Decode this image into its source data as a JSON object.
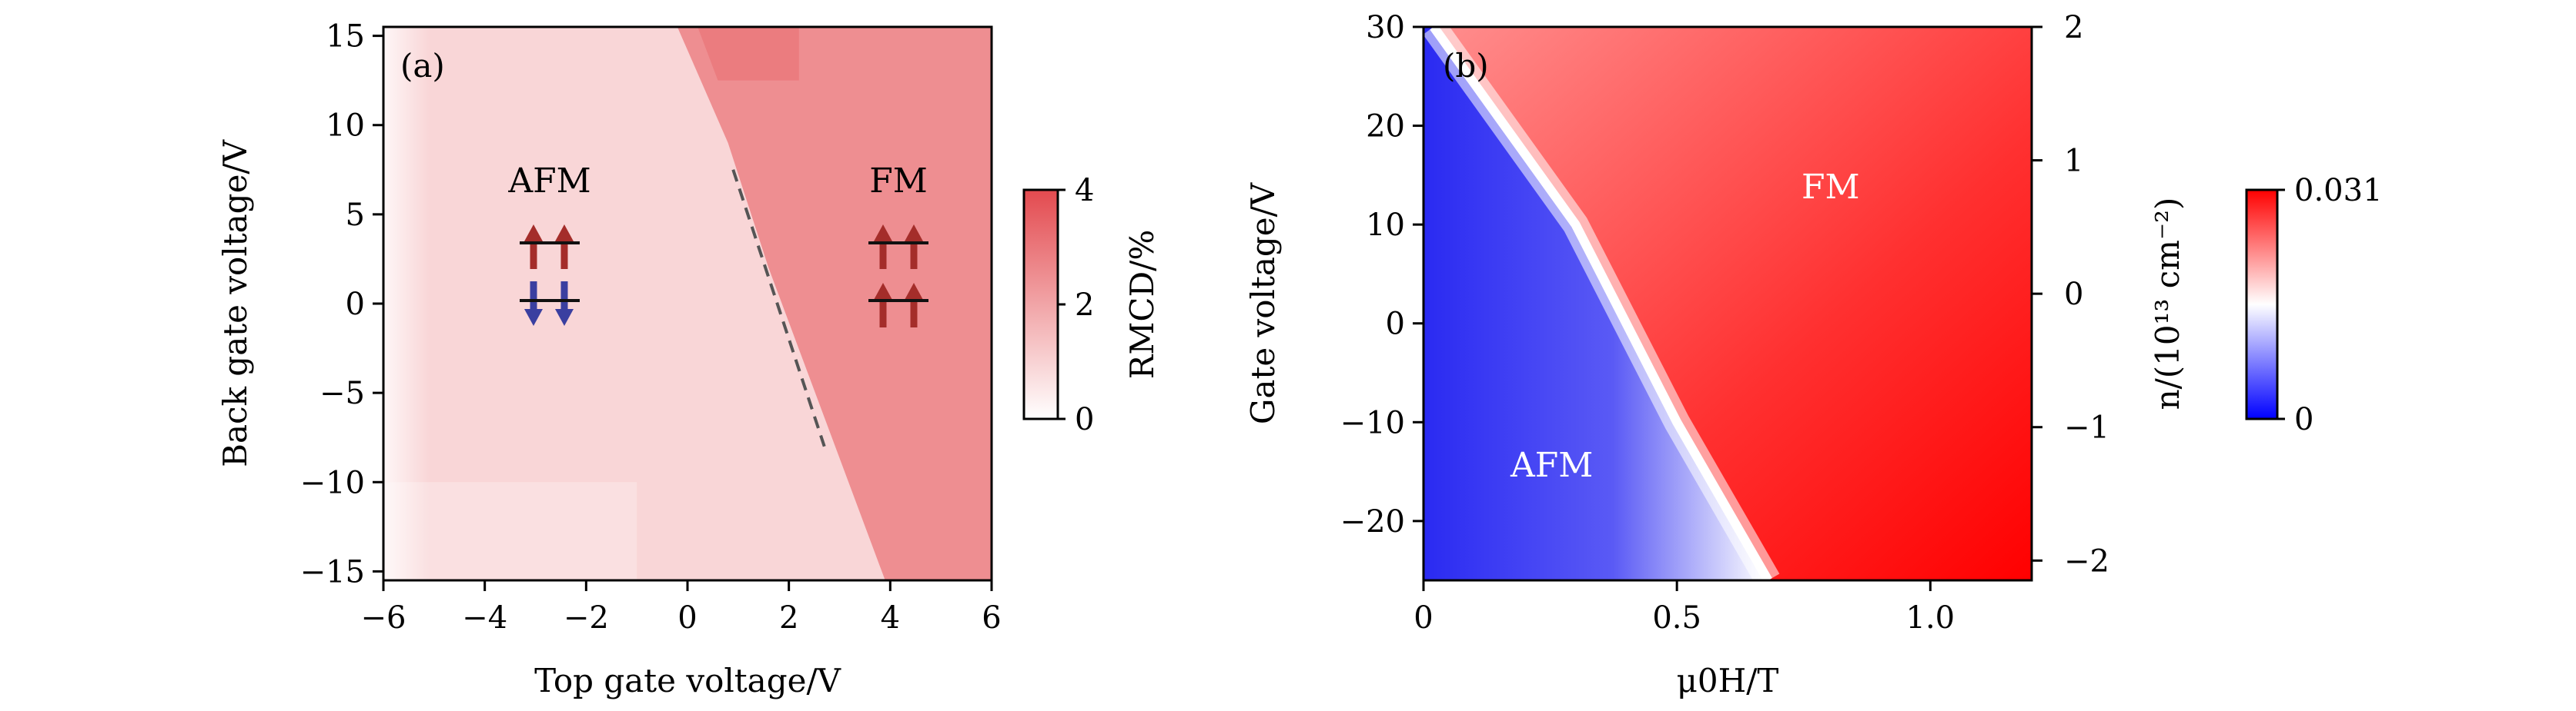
{
  "chart_data": [
    {
      "type": "heatmap",
      "panel": "(a)",
      "xlabel": "Top gate voltage/V",
      "ylabel": "Back gate voltage/V",
      "xlim": [
        -6,
        6
      ],
      "ylim": [
        -15.5,
        15.5
      ],
      "xticks": [
        "−6",
        "−4",
        "−2",
        "0",
        "2",
        "4",
        "6"
      ],
      "xtick_values": [
        -6,
        -4,
        -2,
        0,
        2,
        4,
        6
      ],
      "yticks": [
        "15",
        "10",
        "5",
        "0",
        "−5",
        "−10",
        "−15"
      ],
      "ytick_values": [
        15,
        10,
        5,
        0,
        -5,
        -10,
        -15
      ],
      "colorbar": {
        "label": "RMCD/%",
        "range": [
          0,
          4
        ],
        "ticks": [
          "4",
          "2",
          "0"
        ],
        "tick_values": [
          4,
          2,
          0
        ],
        "colors": [
          "#ffffff",
          "#e34a4f"
        ]
      },
      "regions": [
        {
          "name": "AFM",
          "rmcd_percent": 0.9
        },
        {
          "name": "FM",
          "rmcd_percent": 2.5
        }
      ],
      "boundary": {
        "style": "dashed",
        "color": "#555555",
        "points": [
          [
            0.9,
            7.5
          ],
          [
            2.7,
            -8.0
          ]
        ]
      },
      "phase_labels": [
        "AFM",
        "FM"
      ]
    },
    {
      "type": "heatmap",
      "panel": "(b)",
      "xlabel": "μ0H/T",
      "ylabel": "Gate voltage/V",
      "y2label": "n/(10¹³ cm⁻²)",
      "xlim": [
        0,
        1.2
      ],
      "ylim": [
        -26,
        30
      ],
      "xticks": [
        "0",
        "0.5",
        "1.0"
      ],
      "xtick_values": [
        0,
        0.5,
        1.0
      ],
      "yticks": [
        "30",
        "20",
        "10",
        "0",
        "−10",
        "−20"
      ],
      "ytick_values": [
        30,
        20,
        10,
        0,
        -10,
        -20
      ],
      "y2ticks": [
        "2",
        "1",
        "0",
        "−1",
        "−2"
      ],
      "y2tick_values": [
        2,
        1,
        0,
        -1,
        -2
      ],
      "colorbar": {
        "range": [
          0,
          0.031
        ],
        "ticks": [
          "0.031",
          "0"
        ],
        "tick_values": [
          0.031,
          0
        ],
        "colors": [
          "#0000ff",
          "#ffffff",
          "#ff0000"
        ]
      },
      "boundary": {
        "style": "transition",
        "points": [
          [
            0.02,
            30
          ],
          [
            0.3,
            10
          ],
          [
            0.5,
            -10
          ],
          [
            0.68,
            -26
          ]
        ]
      },
      "phase_labels": [
        "AFM",
        "FM"
      ]
    }
  ]
}
